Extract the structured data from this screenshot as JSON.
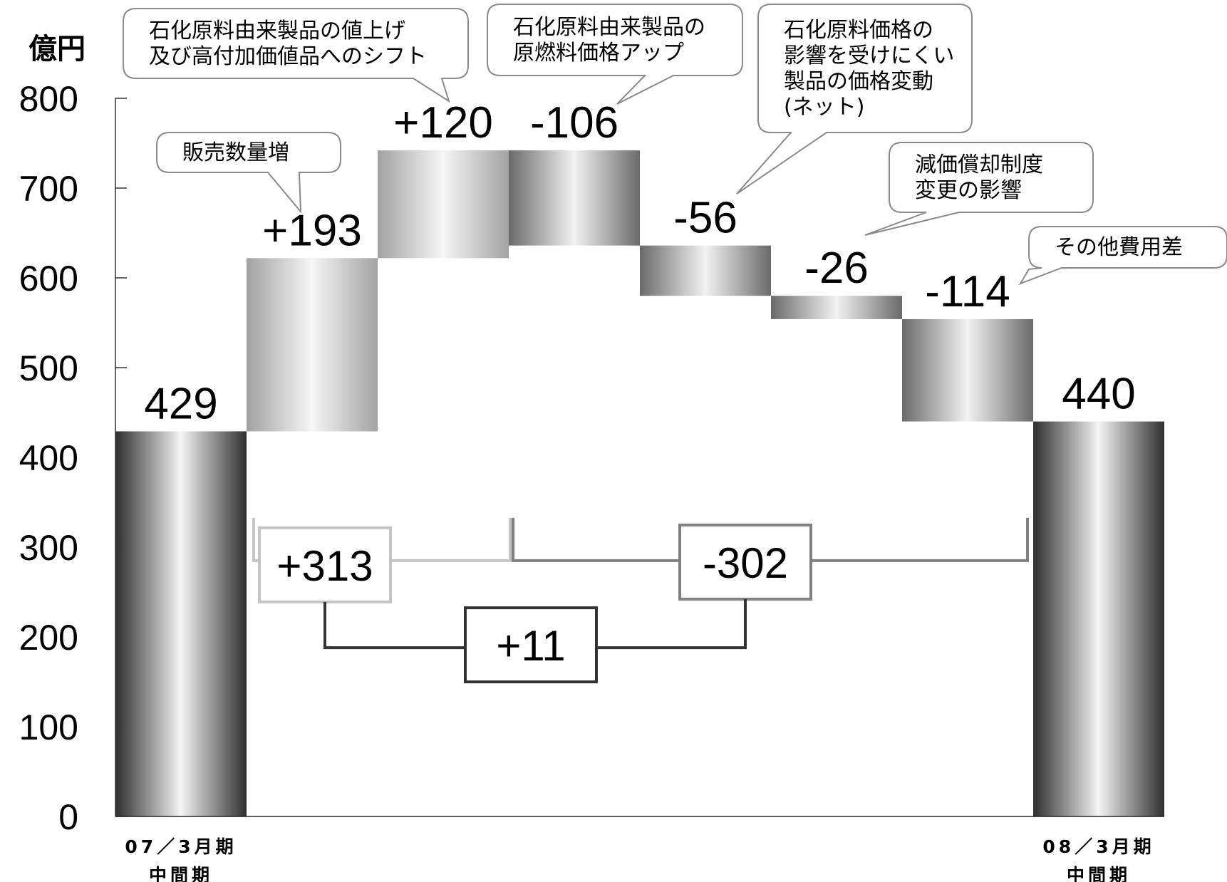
{
  "chart_data": {
    "type": "waterfall",
    "unit": "億円",
    "ylim": [
      0,
      800
    ],
    "yticks": [
      "0",
      "100",
      "200",
      "300",
      "400",
      "500",
      "600",
      "700",
      "800"
    ],
    "categories": [
      [
        "07／3月期",
        "中間期"
      ],
      [],
      [],
      [],
      [],
      [],
      [],
      [
        "08／3月期",
        "中間期"
      ]
    ],
    "steps": [
      {
        "label": "429",
        "kind": "total",
        "value": 429
      },
      {
        "label": "+193",
        "kind": "increase",
        "value": 193
      },
      {
        "label": "+120",
        "kind": "increase",
        "value": 120
      },
      {
        "label": "-106",
        "kind": "decrease",
        "value": -106
      },
      {
        "label": "-56",
        "kind": "decrease",
        "value": -56
      },
      {
        "label": "-26",
        "kind": "decrease",
        "value": -26
      },
      {
        "label": "-114",
        "kind": "decrease",
        "value": -114
      },
      {
        "label": "440",
        "kind": "total",
        "value": 440
      }
    ],
    "callouts": [
      {
        "step": 1,
        "lines": [
          "販売数量増"
        ]
      },
      {
        "step": 2,
        "lines": [
          "石化原料由来製品の値上げ",
          "及び高付加価値品へのシフト"
        ]
      },
      {
        "step": 3,
        "lines": [
          "石化原料由来製品の",
          "原燃料価格アップ"
        ]
      },
      {
        "step": 4,
        "lines": [
          "石化原料価格の",
          "影響を受けにくい",
          "製品の価格変動",
          "(ネット)"
        ]
      },
      {
        "step": 5,
        "lines": [
          "減価償却制度",
          "変更の影響"
        ]
      },
      {
        "step": 6,
        "lines": [
          "その他費用差"
        ]
      }
    ],
    "brackets": [
      {
        "label": "+313",
        "from_step": 1,
        "to_step": 2,
        "color": "#c4c4c4"
      },
      {
        "label": "-302",
        "from_step": 3,
        "to_step": 6,
        "color": "#808080"
      },
      {
        "label": "+11",
        "color": "#333333"
      }
    ]
  }
}
